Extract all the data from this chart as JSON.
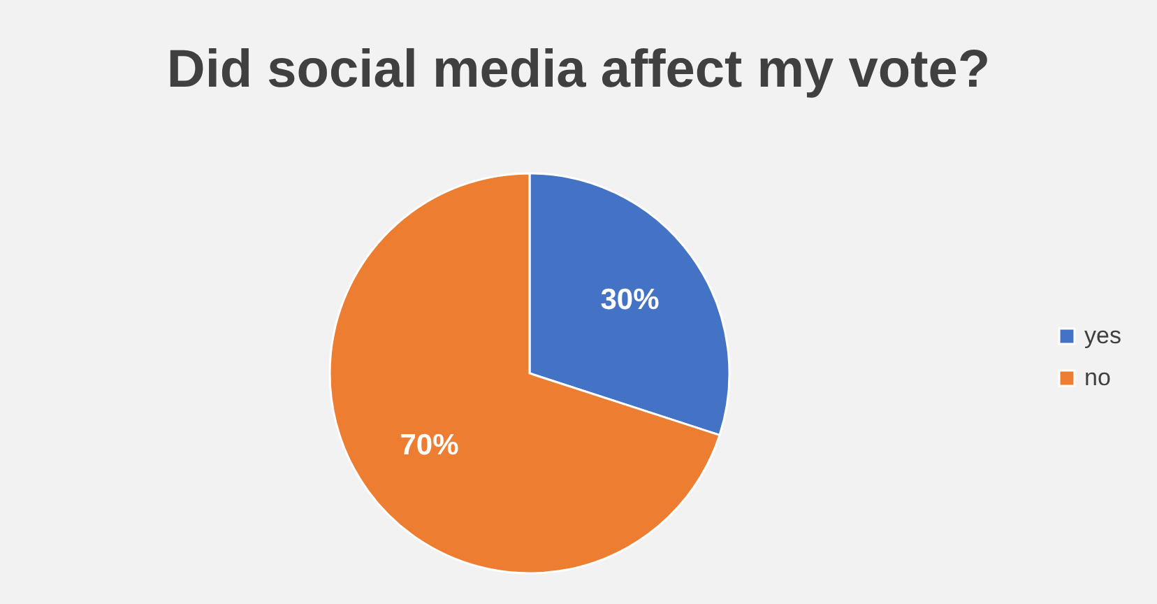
{
  "chart_data": {
    "type": "pie",
    "title": "Did social media affect my vote?",
    "categories": [
      "yes",
      "no"
    ],
    "values": [
      30,
      70
    ],
    "colors": [
      "#4472c4",
      "#ed7d31"
    ],
    "value_labels": [
      "30%",
      "70%"
    ],
    "legend": "right"
  }
}
